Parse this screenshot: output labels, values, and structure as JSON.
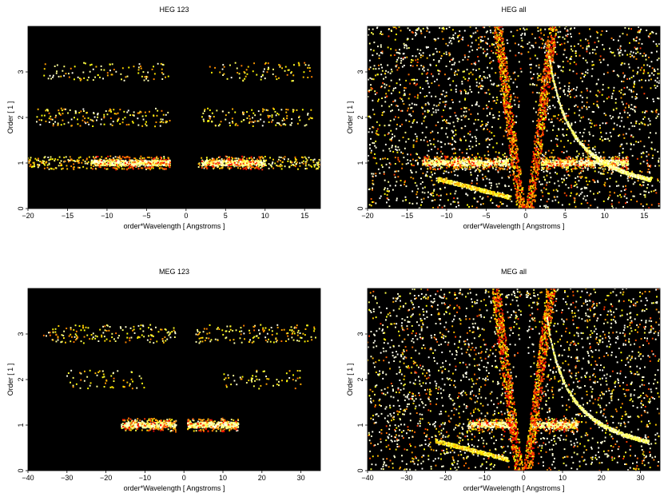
{
  "chart_data": [
    {
      "type": "heatmap",
      "title": "HEG 123",
      "xlabel": "order*Wavelength [ Angstroms ]",
      "ylabel": "Order [ 1 ]",
      "xlim": [
        -20,
        17
      ],
      "ylim": [
        0,
        4
      ],
      "xticks": [
        -20,
        -15,
        -10,
        -5,
        0,
        5,
        10,
        15
      ],
      "yticks": [
        0,
        1,
        2,
        3
      ],
      "colormap": "hot",
      "background": "#000000",
      "features": [
        {
          "kind": "band",
          "order": 1,
          "x_ranges": [
            [
              -20,
              -2
            ],
            [
              1.5,
              17
            ]
          ],
          "intensity": "high",
          "bright_core_ranges": [
            [
              -12,
              -2
            ],
            [
              2,
              10
            ]
          ]
        },
        {
          "kind": "band",
          "order": 2,
          "x_ranges": [
            [
              -19,
              -2
            ],
            [
              2,
              16
            ]
          ],
          "intensity": "medium"
        },
        {
          "kind": "band",
          "order": 3,
          "x_ranges": [
            [
              -18,
              -2
            ],
            [
              3,
              16
            ]
          ],
          "intensity": "low"
        }
      ]
    },
    {
      "type": "heatmap",
      "title": "HEG all",
      "xlabel": "order*Wavelength [ Angstroms ]",
      "ylabel": "Order [ 1 ]",
      "xlim": [
        -20,
        17
      ],
      "ylim": [
        0,
        4
      ],
      "xticks": [
        -20,
        -15,
        -10,
        -5,
        0,
        5,
        10,
        15
      ],
      "yticks": [
        0,
        1,
        2,
        3
      ],
      "colormap": "hot",
      "background": "#000000",
      "features": [
        {
          "kind": "band",
          "order": 1,
          "x_ranges": [
            [
              -13,
              -2
            ],
            [
              2,
              13
            ]
          ],
          "intensity": "high"
        },
        {
          "kind": "scatter-field",
          "x_range": [
            -20,
            17
          ],
          "y_range": [
            0,
            4
          ],
          "intensity": "medium"
        },
        {
          "kind": "cone",
          "apex_x": 0,
          "apex_y": 0,
          "intensity": "low"
        }
      ]
    },
    {
      "type": "heatmap",
      "title": "MEG 123",
      "xlabel": "order*Wavelength [ Angstroms ]",
      "ylabel": "Order [ 1 ]",
      "xlim": [
        -40,
        35
      ],
      "ylim": [
        0,
        4
      ],
      "xticks": [
        -40,
        -30,
        -20,
        -10,
        0,
        10,
        20,
        30
      ],
      "yticks": [
        0,
        1,
        2,
        3
      ],
      "colormap": "hot",
      "background": "#000000",
      "features": [
        {
          "kind": "band",
          "order": 1,
          "x_ranges": [
            [
              -16,
              -2
            ],
            [
              1,
              14
            ]
          ],
          "intensity": "high"
        },
        {
          "kind": "band",
          "order": 2,
          "x_ranges": [
            [
              -30,
              -10
            ],
            [
              10,
              30
            ]
          ],
          "intensity": "low"
        },
        {
          "kind": "band",
          "order": 3,
          "x_ranges": [
            [
              -36,
              -2
            ],
            [
              3,
              34
            ]
          ],
          "intensity": "medium"
        }
      ]
    },
    {
      "type": "heatmap",
      "title": "MEG all",
      "xlabel": "order*Wavelength [ Angstroms ]",
      "ylabel": "Order [ 1 ]",
      "xlim": [
        -40,
        35
      ],
      "ylim": [
        0,
        4
      ],
      "xticks": [
        -40,
        -30,
        -20,
        -10,
        0,
        10,
        20,
        30
      ],
      "yticks": [
        0,
        1,
        2,
        3
      ],
      "colormap": "hot",
      "background": "#000000",
      "features": [
        {
          "kind": "band",
          "order": 1,
          "x_ranges": [
            [
              -14,
              -2
            ],
            [
              2,
              14
            ]
          ],
          "intensity": "high"
        },
        {
          "kind": "scatter-field",
          "x_range": [
            -40,
            35
          ],
          "y_range": [
            0,
            4
          ],
          "intensity": "medium"
        },
        {
          "kind": "cone",
          "apex_x": 0,
          "apex_y": 0,
          "intensity": "low"
        }
      ]
    }
  ]
}
